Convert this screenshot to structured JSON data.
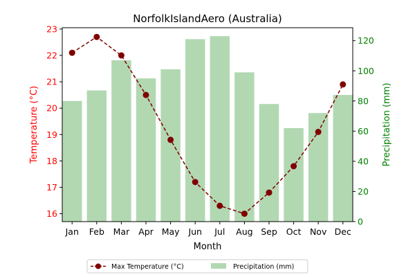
{
  "chart_data": {
    "type": "bar+line",
    "title": "NorfolkIslandAero (Australia)",
    "xlabel": "Month",
    "ylabel_left": "Temperature (°C)",
    "ylabel_right": "Precipitation (mm)",
    "categories": [
      "Jan",
      "Feb",
      "Mar",
      "Apr",
      "May",
      "Jun",
      "Jul",
      "Aug",
      "Sep",
      "Oct",
      "Nov",
      "Dec"
    ],
    "ylim_left": [
      15.7,
      23.05
    ],
    "ylim_right": [
      0,
      128.6
    ],
    "yticks_left": [
      "16",
      "17",
      "18",
      "19",
      "20",
      "21",
      "22",
      "23"
    ],
    "yticks_right": [
      "0",
      "20",
      "40",
      "60",
      "80",
      "100",
      "120"
    ],
    "series": [
      {
        "name": "Max Temperature (°C)",
        "kind": "line",
        "axis": "left",
        "color": "#800000",
        "values": [
          22.1,
          22.7,
          22.0,
          20.5,
          18.8,
          17.2,
          16.3,
          16.0,
          16.8,
          17.8,
          19.1,
          20.9
        ]
      },
      {
        "name": "Precipitation (mm)",
        "kind": "bar",
        "axis": "right",
        "color": "#b2d8b2",
        "values": [
          80,
          87,
          107,
          95,
          101,
          121,
          123,
          99,
          78,
          62,
          72,
          84
        ]
      }
    ],
    "left_axis_color": "#ff0000",
    "right_axis_color": "#008000",
    "grid": false,
    "legend_placement": "bottom-center"
  }
}
